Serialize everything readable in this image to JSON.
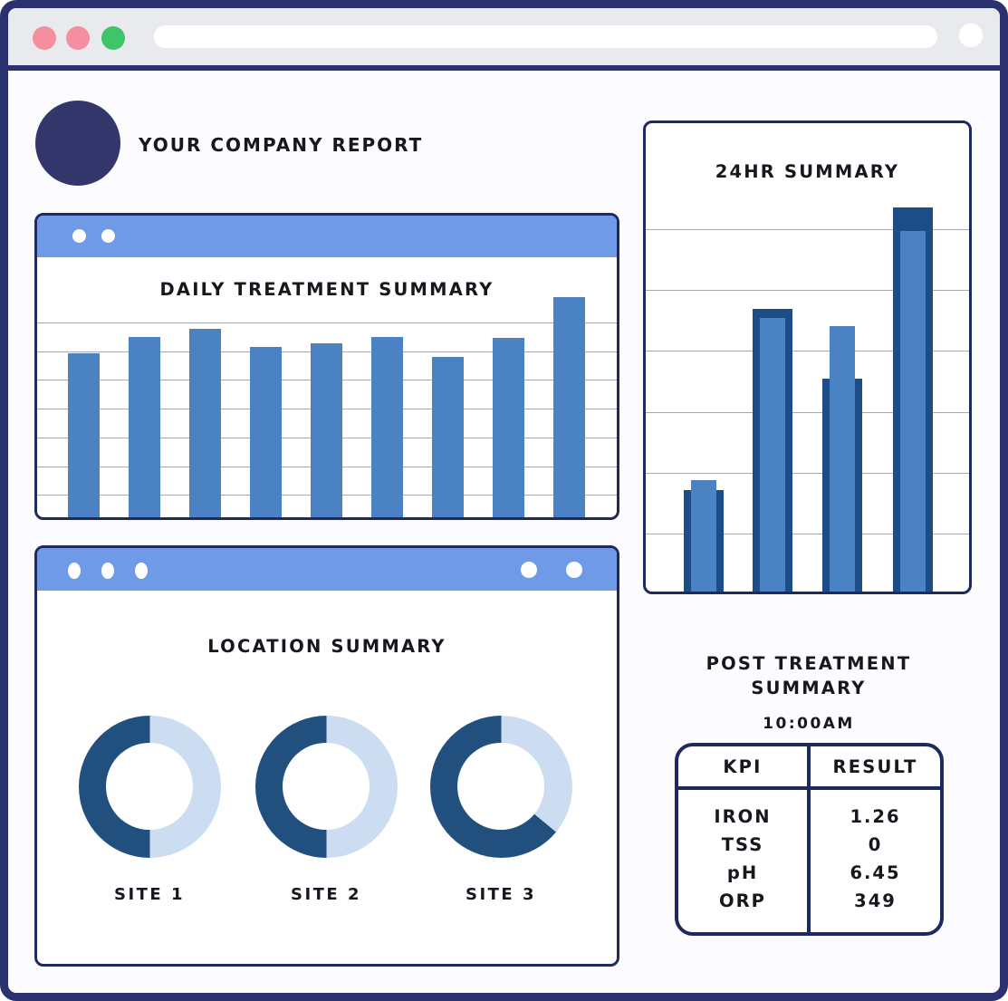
{
  "browser": {
    "window_buttons": [
      "close",
      "minimize",
      "maximize"
    ],
    "accent_colors": {
      "frame_navy": "#2a316e",
      "header_blue": "#6e9ae8",
      "bar_blue": "#4a82c4",
      "dark_blue": "#1d4d86",
      "donut_dark": "#21507e",
      "donut_light": "#cdddf1"
    }
  },
  "header": {
    "title": "YOUR COMPANY REPORT"
  },
  "daily": {
    "title": "DAILY TREATMENT SUMMARY"
  },
  "location": {
    "title": "LOCATION SUMMARY",
    "sites": [
      {
        "label": "SITE 1",
        "dark_pct": 50
      },
      {
        "label": "SITE 2",
        "dark_pct": 50
      },
      {
        "label": "SITE 3",
        "dark_pct": 64
      }
    ]
  },
  "summary24": {
    "title": "24HR SUMMARY"
  },
  "post": {
    "title_line1": "POST TREATMENT",
    "title_line2": "SUMMARY",
    "time": "10:00AM",
    "table": {
      "headers": [
        "KPI",
        "RESULT"
      ],
      "rows": [
        [
          "IRON",
          "1.26"
        ],
        [
          "TSS",
          "0"
        ],
        [
          "pH",
          "6.45"
        ],
        [
          "ORP",
          "349"
        ]
      ]
    }
  },
  "chart_data": [
    {
      "type": "bar",
      "title": "DAILY TREATMENT SUMMARY",
      "values": [
        63.5,
        69.8,
        73.0,
        66.0,
        67.4,
        69.8,
        62.1,
        69.5,
        85.3
      ],
      "ylim": [
        0,
        100
      ],
      "grid": true,
      "note": "values are percent of plot height; no axis labels shown"
    },
    {
      "type": "bar",
      "title": "24HR SUMMARY",
      "series": [
        {
          "name": "back-dark",
          "values": [
            21.7,
            60.3,
            45.5,
            82.0
          ]
        },
        {
          "name": "front-light",
          "values": [
            23.8,
            58.4,
            56.7,
            77.0
          ]
        }
      ],
      "ylim": [
        0,
        100
      ],
      "grid": true,
      "note": "values are percent of plot height; no axis labels shown"
    },
    {
      "type": "pie",
      "title": "LOCATION SUMMARY",
      "donuts": [
        {
          "label": "SITE 1",
          "dark_pct": 50
        },
        {
          "label": "SITE 2",
          "dark_pct": 50
        },
        {
          "label": "SITE 3",
          "dark_pct": 64
        }
      ]
    }
  ]
}
